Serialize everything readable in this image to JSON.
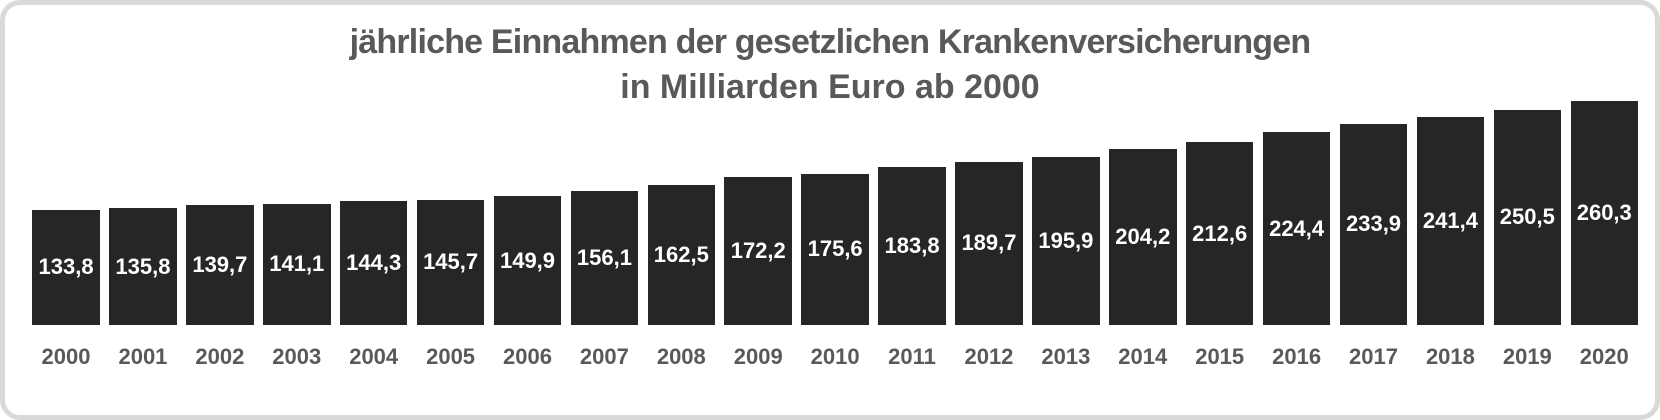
{
  "colors": {
    "background": "#ffffff",
    "frame_border": "#d9d9d9",
    "bar_fill": "#262626",
    "bar_label": "#ffffff",
    "title_text": "#595959",
    "year_text": "#595959"
  },
  "chart_data": {
    "type": "bar",
    "title": "jährliche Einnahmen der gesetzlichen Krankenversicherungen in Milliarden Euro ab 2000",
    "title_line1": "jährliche Einnahmen der gesetzlichen Krankenversicherungen",
    "title_line2": "in Milliarden Euro ab 2000",
    "categories": [
      "2000",
      "2001",
      "2002",
      "2003",
      "2004",
      "2005",
      "2006",
      "2007",
      "2008",
      "2009",
      "2010",
      "2011",
      "2012",
      "2013",
      "2014",
      "2015",
      "2016",
      "2017",
      "2018",
      "2019",
      "2020"
    ],
    "values": [
      133.8,
      135.8,
      139.7,
      141.1,
      144.3,
      145.7,
      149.9,
      156.1,
      162.5,
      172.2,
      175.6,
      183.8,
      189.7,
      195.9,
      204.2,
      212.6,
      224.4,
      233.9,
      241.4,
      250.5,
      260.3
    ],
    "value_labels": [
      "133,8",
      "135,8",
      "139,7",
      "141,1",
      "144,3",
      "145,7",
      "149,9",
      "156,1",
      "162,5",
      "172,2",
      "175,6",
      "183,8",
      "189,7",
      "195,9",
      "204,2",
      "212,6",
      "224,4",
      "233,9",
      "241,4",
      "250,5",
      "260,3"
    ],
    "xlabel": "",
    "ylabel": "",
    "ylim": [
      0,
      260.3
    ],
    "grid": false,
    "axes_visible": false,
    "legend": false,
    "data_label_position": "inside-center"
  }
}
